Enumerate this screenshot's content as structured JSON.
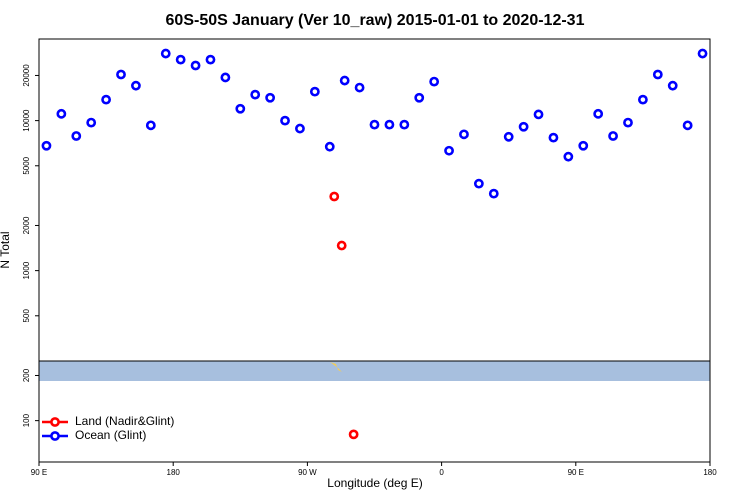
{
  "chart_data": {
    "type": "scatter",
    "title": "60S-50S January (Ver 10_raw)   2015-01-01 to 2020-12-31",
    "x_label": "Longitude (deg E)",
    "y_label": "N Total",
    "log_y": true,
    "legend": "bottom-left",
    "xlim": [
      90,
      540
    ],
    "ylim": [
      53,
      35000
    ],
    "xticks": [
      {
        "value": 90,
        "label": "90 E"
      },
      180,
      {
        "value": 270,
        "label": "90 W"
      },
      {
        "value": 360,
        "label": "0"
      },
      {
        "value": 450,
        "label": "90 E"
      },
      {
        "value": 540,
        "label": "180"
      }
    ],
    "yticks": [
      100,
      200,
      500,
      1000,
      2000,
      5000,
      10000,
      20000
    ],
    "series": [
      {
        "name": "Land (Nadir&Glint)",
        "color": "#ff0000",
        "x": [
          288,
          293,
          301
        ],
        "values": [
          3120,
          1470,
          81
        ]
      },
      {
        "name": "Ocean (Glint)",
        "color": "#0000ff",
        "x": [
          95,
          105,
          115,
          125,
          135,
          145,
          155,
          165,
          175,
          185,
          195,
          205,
          215,
          225,
          235,
          245,
          255,
          265,
          275,
          285,
          295,
          305,
          315,
          325,
          335,
          345,
          355,
          365,
          375,
          385,
          395,
          405,
          415,
          425,
          435,
          445,
          455,
          465,
          475,
          485,
          495,
          505,
          515,
          525,
          535
        ],
        "values": [
          6800,
          11100,
          7900,
          9700,
          13800,
          20300,
          17100,
          9300,
          28000,
          25500,
          23300,
          25500,
          19400,
          12000,
          14900,
          14200,
          10000,
          8850,
          15600,
          6700,
          18500,
          16600,
          9400,
          9400,
          9400,
          14200,
          18200,
          6300,
          8100,
          3800,
          3260,
          7800,
          9100,
          11000,
          7700,
          5750,
          6800,
          11100,
          7900,
          9700,
          13800,
          20300,
          17100,
          9300,
          28000
        ]
      }
    ]
  }
}
